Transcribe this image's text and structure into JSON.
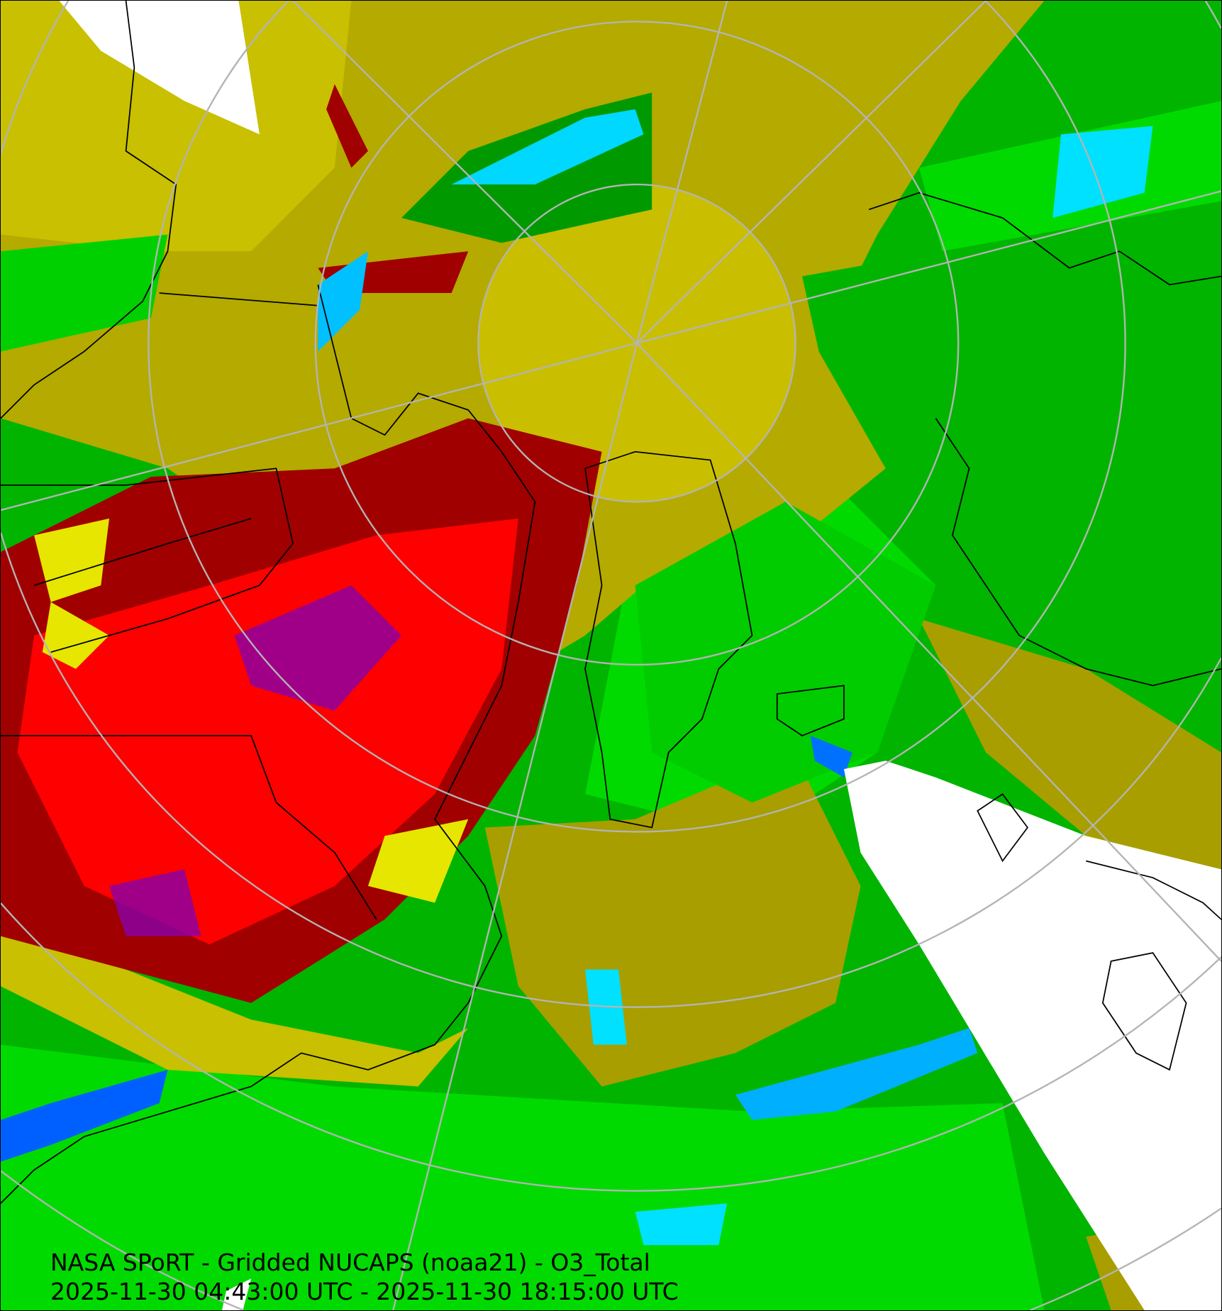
{
  "map": {
    "title": "NASA SPoRT - Gridded NUCAPS (noaa21) - O3_Total",
    "time_range": "2025-11-30 04:43:00 UTC - 2025-11-30 18:15:00 UTC",
    "projection": "north polar stereographic",
    "colors": {
      "background_green": "#00b800",
      "bright_green": "#00e600",
      "olive": "#a89e00",
      "yellow": "#e6e600",
      "red": "#ff0000",
      "dark_red": "#a00000",
      "purple": "#8800aa",
      "cyan": "#00e0ff",
      "blue": "#0070ff",
      "no_data": "#ffffff",
      "graticule": "#b4b4b4",
      "coastline": "#000000"
    }
  }
}
